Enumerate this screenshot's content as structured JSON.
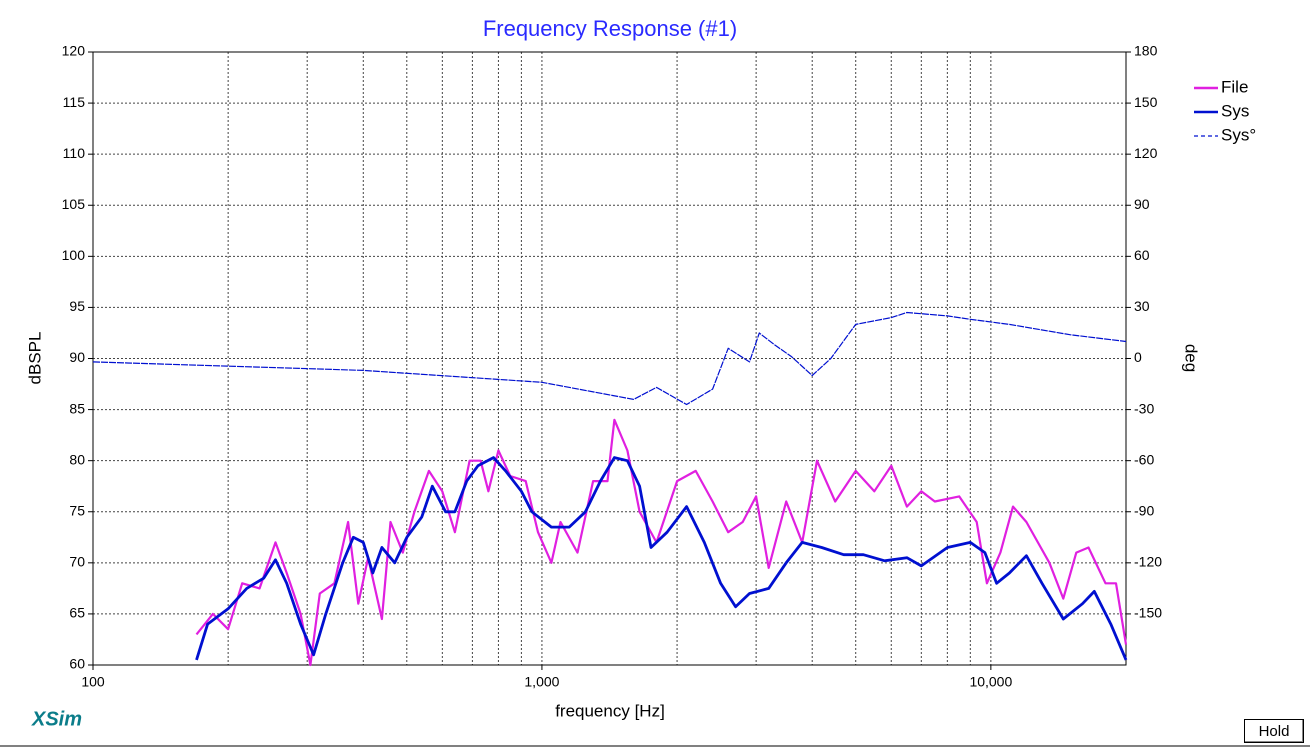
{
  "chart_data": {
    "type": "line",
    "title": "Frequency Response (#1)",
    "x_label": "frequency [Hz]",
    "y_label": "dBSPL",
    "y2_label": "deg",
    "xscale": "log",
    "xlim": [
      100,
      20000
    ],
    "xticks": [
      100,
      {
        "value": 1000,
        "label": "1,000"
      },
      {
        "value": 10000,
        "label": "10,000"
      }
    ],
    "xgrid_minor": [
      200,
      300,
      400,
      500,
      600,
      700,
      800,
      900,
      2000,
      3000,
      4000,
      5000,
      6000,
      7000,
      8000,
      9000
    ],
    "ylim": [
      60,
      120
    ],
    "yticks": [
      60,
      65,
      70,
      75,
      80,
      85,
      90,
      95,
      100,
      105,
      110,
      115,
      120
    ],
    "y2lim": [
      -180,
      180
    ],
    "y2ticks": [
      -150,
      -120,
      -90,
      -60,
      -30,
      0,
      30,
      60,
      90,
      120,
      150,
      180
    ],
    "grid": true,
    "legend": "right",
    "series": [
      {
        "name": "File",
        "color": "#e020e0",
        "width": 2.2,
        "dashed": false,
        "x": [
          170,
          185,
          200,
          215,
          235,
          255,
          270,
          290,
          305,
          320,
          345,
          370,
          390,
          410,
          440,
          460,
          490,
          520,
          560,
          600,
          640,
          690,
          730,
          760,
          800,
          850,
          920,
          980,
          1050,
          1100,
          1200,
          1300,
          1400,
          1450,
          1550,
          1650,
          1800,
          2000,
          2200,
          2400,
          2600,
          2800,
          3000,
          3200,
          3500,
          3800,
          4100,
          4500,
          5000,
          5500,
          6000,
          6500,
          7000,
          7500,
          8500,
          9300,
          9800,
          10500,
          11200,
          12000,
          13500,
          14500,
          15500,
          16500,
          18000,
          19000,
          20000
        ],
        "values": [
          63,
          65,
          63.5,
          68,
          67.5,
          72,
          69,
          65,
          60,
          67,
          68,
          74,
          66,
          70.5,
          64.5,
          74,
          71,
          75,
          79,
          77,
          73,
          80,
          80,
          77,
          81,
          78.5,
          78,
          73,
          70,
          74,
          71,
          78,
          78,
          84,
          81,
          75,
          72,
          78,
          79,
          76,
          73,
          74,
          76.5,
          69.5,
          76,
          72,
          80,
          76,
          79,
          77,
          79.5,
          75.5,
          77,
          76,
          76.5,
          74,
          68,
          71,
          75.5,
          74,
          70,
          66.5,
          71,
          71.5,
          68,
          68,
          62
        ]
      },
      {
        "name": "Sys",
        "color": "#0010d0",
        "width": 2.8,
        "dashed": false,
        "x": [
          170,
          180,
          200,
          220,
          240,
          255,
          270,
          290,
          310,
          330,
          360,
          380,
          400,
          420,
          440,
          470,
          500,
          540,
          570,
          610,
          640,
          680,
          720,
          780,
          830,
          900,
          950,
          1050,
          1150,
          1250,
          1350,
          1450,
          1550,
          1650,
          1750,
          1900,
          2100,
          2300,
          2500,
          2700,
          2900,
          3200,
          3500,
          3800,
          4200,
          4700,
          5200,
          5800,
          6500,
          7000,
          8000,
          9000,
          9700,
          10300,
          11000,
          12000,
          13000,
          14500,
          16000,
          17000,
          18500,
          20000
        ],
        "values": [
          60.5,
          64,
          65.5,
          67.5,
          68.5,
          70.3,
          68,
          64,
          61,
          65,
          70,
          72.5,
          72,
          69,
          71.5,
          70,
          72.5,
          74.5,
          77.5,
          75,
          75,
          78,
          79.5,
          80.3,
          79,
          77,
          75,
          73.5,
          73.5,
          75,
          78,
          80.3,
          80,
          77.5,
          71.5,
          73,
          75.5,
          72,
          68,
          65.7,
          67,
          67.5,
          70,
          72,
          71.5,
          70.8,
          70.8,
          70.2,
          70.5,
          69.7,
          71.5,
          72,
          71,
          68,
          69,
          70.7,
          68,
          64.5,
          66,
          67.2,
          64,
          60.5
        ]
      },
      {
        "name": "Sys°",
        "color": "#0010d0",
        "width": 1.2,
        "dashed": true,
        "axis": "y2",
        "x": [
          100,
          400,
          1000,
          1600,
          1800,
          2100,
          2400,
          2600,
          2900,
          3050,
          3300,
          3600,
          4000,
          4400,
          5000,
          6000,
          6500,
          8000,
          9000,
          11000,
          15000,
          20000
        ],
        "values": [
          -2,
          -7,
          -14,
          -24,
          -17,
          -27,
          -18,
          6,
          -2,
          15,
          8,
          1,
          -10,
          0,
          20,
          24,
          27,
          25,
          23,
          20,
          14,
          10
        ]
      }
    ]
  },
  "brand": "XSim",
  "button": "Hold"
}
